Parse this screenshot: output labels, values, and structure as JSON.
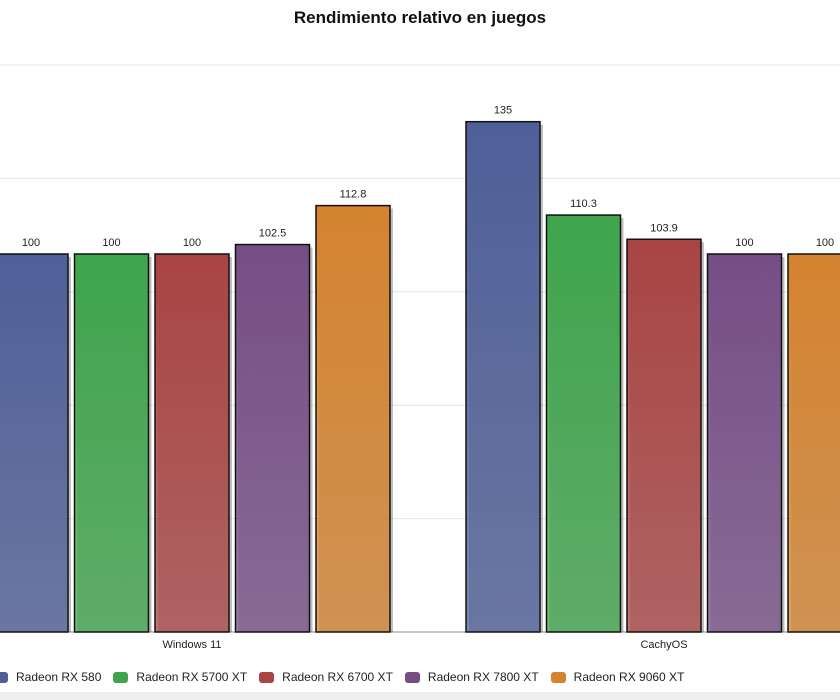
{
  "chart_data": {
    "type": "bar",
    "title": "Rendimiento relativo en juegos",
    "categories": [
      "Windows 11",
      "CachyOS"
    ],
    "series": [
      {
        "name": "Radeon RX 580",
        "values": [
          100,
          135
        ],
        "color": "#4f5f98"
      },
      {
        "name": "Radeon RX 5700 XT",
        "values": [
          100,
          110.3
        ],
        "color": "#3fa54c"
      },
      {
        "name": "Radeon RX 6700 XT",
        "values": [
          100,
          103.9
        ],
        "color": "#a94444"
      },
      {
        "name": "Radeon RX 7800 XT",
        "values": [
          102.5,
          100
        ],
        "color": "#764e86"
      },
      {
        "name": "Radeon RX 9060 XT",
        "values": [
          112.8,
          100
        ],
        "color": "#d4832f"
      }
    ],
    "ylim": [
      0,
      150
    ],
    "grid": true,
    "legend": "bottom",
    "data_labels": true
  }
}
